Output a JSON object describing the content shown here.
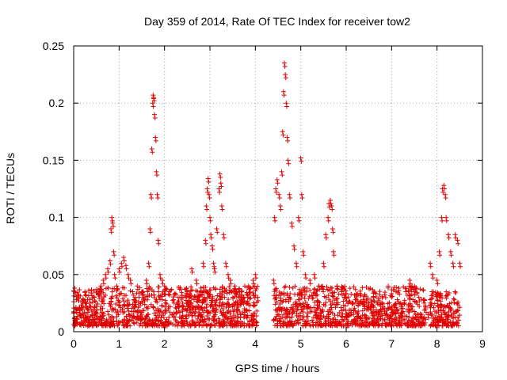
{
  "chart_data": {
    "type": "scatter",
    "title": "Day 359 of 2014, Rate Of TEC Index for receiver tow2",
    "xlabel": "GPS time / hours",
    "ylabel": "ROTI / TECUs",
    "xlim": [
      0,
      9
    ],
    "ylim": [
      0,
      0.25
    ],
    "x_ticks": [
      "0",
      "1",
      "2",
      "3",
      "4",
      "5",
      "6",
      "7",
      "8",
      "9"
    ],
    "y_ticks": [
      "0",
      "0.05",
      "0.1",
      "0.15",
      "0.2",
      "0.25"
    ],
    "grid": true,
    "marker": "+",
    "color": "#e00000",
    "series": [
      {
        "name": "ROTI",
        "points": [
          [
            0.02,
            0.012
          ],
          [
            0.05,
            0.02
          ],
          [
            0.1,
            0.03
          ],
          [
            0.15,
            0.015
          ],
          [
            0.2,
            0.025
          ],
          [
            0.25,
            0.035
          ],
          [
            0.3,
            0.02
          ],
          [
            0.35,
            0.028
          ],
          [
            0.4,
            0.018
          ],
          [
            0.45,
            0.03
          ],
          [
            0.5,
            0.022
          ],
          [
            0.55,
            0.032
          ],
          [
            0.6,
            0.04
          ],
          [
            0.65,
            0.045
          ],
          [
            0.7,
            0.05
          ],
          [
            0.75,
            0.055
          ],
          [
            0.8,
            0.062
          ],
          [
            0.82,
            0.09
          ],
          [
            0.84,
            0.1
          ],
          [
            0.86,
            0.095
          ],
          [
            0.88,
            0.07
          ],
          [
            0.9,
            0.05
          ],
          [
            0.95,
            0.04
          ],
          [
            1.0,
            0.055
          ],
          [
            1.05,
            0.06
          ],
          [
            1.1,
            0.065
          ],
          [
            1.15,
            0.058
          ],
          [
            1.2,
            0.05
          ],
          [
            1.25,
            0.045
          ],
          [
            1.3,
            0.035
          ],
          [
            1.35,
            0.03
          ],
          [
            1.4,
            0.04
          ],
          [
            1.5,
            0.035
          ],
          [
            1.55,
            0.03
          ],
          [
            1.6,
            0.045
          ],
          [
            1.65,
            0.06
          ],
          [
            1.68,
            0.09
          ],
          [
            1.7,
            0.12
          ],
          [
            1.72,
            0.16
          ],
          [
            1.74,
            0.2
          ],
          [
            1.75,
            0.207
          ],
          [
            1.76,
            0.205
          ],
          [
            1.78,
            0.19
          ],
          [
            1.8,
            0.17
          ],
          [
            1.82,
            0.14
          ],
          [
            1.84,
            0.12
          ],
          [
            1.86,
            0.08
          ],
          [
            1.9,
            0.05
          ],
          [
            1.95,
            0.045
          ],
          [
            2.0,
            0.04
          ],
          [
            2.1,
            0.035
          ],
          [
            2.2,
            0.028
          ],
          [
            2.3,
            0.03
          ],
          [
            2.4,
            0.025
          ],
          [
            2.5,
            0.035
          ],
          [
            2.6,
            0.055
          ],
          [
            2.7,
            0.045
          ],
          [
            2.8,
            0.035
          ],
          [
            2.85,
            0.06
          ],
          [
            2.9,
            0.08
          ],
          [
            2.92,
            0.11
          ],
          [
            2.94,
            0.125
          ],
          [
            2.96,
            0.134
          ],
          [
            2.98,
            0.12
          ],
          [
            3.0,
            0.1
          ],
          [
            3.02,
            0.085
          ],
          [
            3.05,
            0.075
          ],
          [
            3.08,
            0.06
          ],
          [
            3.1,
            0.055
          ],
          [
            3.15,
            0.09
          ],
          [
            3.2,
            0.125
          ],
          [
            3.22,
            0.138
          ],
          [
            3.24,
            0.13
          ],
          [
            3.26,
            0.11
          ],
          [
            3.3,
            0.085
          ],
          [
            3.35,
            0.06
          ],
          [
            3.4,
            0.05
          ],
          [
            3.45,
            0.045
          ],
          [
            3.55,
            0.04
          ],
          [
            3.65,
            0.035
          ],
          [
            3.75,
            0.03
          ],
          [
            3.85,
            0.04
          ],
          [
            3.95,
            0.045
          ],
          [
            4.0,
            0.05
          ],
          [
            4.05,
            0.03
          ],
          [
            4.4,
            0.045
          ],
          [
            4.42,
            0.1
          ],
          [
            4.45,
            0.125
          ],
          [
            4.48,
            0.133
          ],
          [
            4.52,
            0.12
          ],
          [
            4.55,
            0.11
          ],
          [
            4.58,
            0.14
          ],
          [
            4.6,
            0.175
          ],
          [
            4.62,
            0.21
          ],
          [
            4.64,
            0.235
          ],
          [
            4.66,
            0.225
          ],
          [
            4.68,
            0.2
          ],
          [
            4.7,
            0.17
          ],
          [
            4.72,
            0.15
          ],
          [
            4.75,
            0.12
          ],
          [
            4.8,
            0.095
          ],
          [
            4.85,
            0.075
          ],
          [
            4.9,
            0.06
          ],
          [
            4.95,
            0.1
          ],
          [
            5.0,
            0.152
          ],
          [
            5.02,
            0.12
          ],
          [
            5.05,
            0.07
          ],
          [
            5.1,
            0.05
          ],
          [
            5.2,
            0.045
          ],
          [
            5.3,
            0.05
          ],
          [
            5.4,
            0.04
          ],
          [
            5.5,
            0.06
          ],
          [
            5.55,
            0.085
          ],
          [
            5.6,
            0.1
          ],
          [
            5.62,
            0.112
          ],
          [
            5.65,
            0.115
          ],
          [
            5.68,
            0.11
          ],
          [
            5.7,
            0.09
          ],
          [
            5.72,
            0.07
          ],
          [
            5.8,
            0.04
          ],
          [
            5.9,
            0.035
          ],
          [
            6.0,
            0.03
          ],
          [
            6.2,
            0.028
          ],
          [
            6.4,
            0.025
          ],
          [
            6.6,
            0.03
          ],
          [
            6.8,
            0.025
          ],
          [
            7.0,
            0.022
          ],
          [
            7.2,
            0.025
          ],
          [
            7.3,
            0.038
          ],
          [
            7.4,
            0.045
          ],
          [
            7.5,
            0.035
          ],
          [
            7.6,
            0.03
          ],
          [
            7.7,
            0.028
          ],
          [
            7.75,
            0.02
          ],
          [
            7.8,
            0.015
          ],
          [
            7.85,
            0.06
          ],
          [
            7.9,
            0.05
          ],
          [
            8.0,
            0.045
          ],
          [
            8.05,
            0.07
          ],
          [
            8.1,
            0.1
          ],
          [
            8.12,
            0.125
          ],
          [
            8.15,
            0.128
          ],
          [
            8.18,
            0.12
          ],
          [
            8.2,
            0.1
          ],
          [
            8.25,
            0.085
          ],
          [
            8.3,
            0.07
          ],
          [
            8.35,
            0.06
          ],
          [
            8.4,
            0.085
          ],
          [
            8.45,
            0.08
          ],
          [
            8.5,
            0.06
          ]
        ]
      }
    ],
    "dense_bands": [
      {
        "x_start": 0.0,
        "x_end": 4.05,
        "y_min": 0.005,
        "y_max": 0.04
      },
      {
        "x_start": 4.4,
        "x_end": 7.75,
        "y_min": 0.005,
        "y_max": 0.04
      },
      {
        "x_start": 7.85,
        "x_end": 8.5,
        "y_min": 0.005,
        "y_max": 0.035
      }
    ]
  }
}
